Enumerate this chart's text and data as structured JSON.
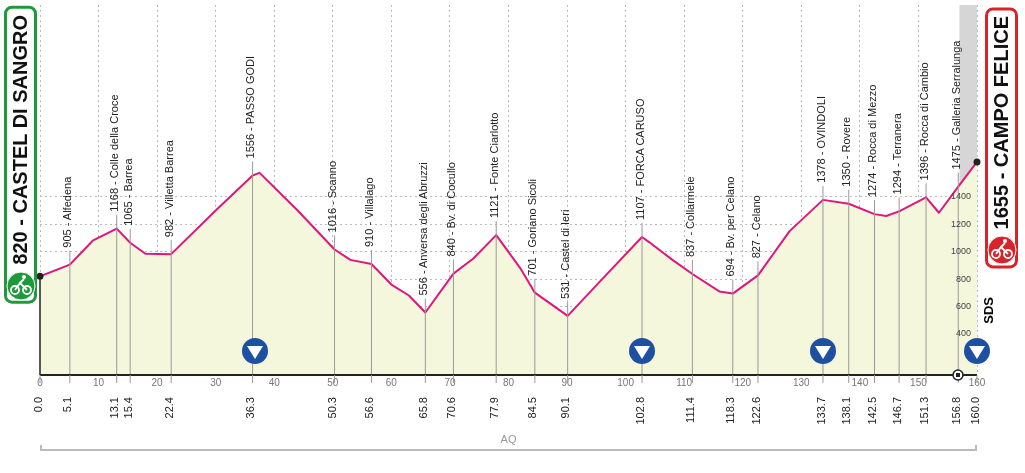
{
  "chart_data": {
    "type": "area",
    "x": [
      0,
      5.1,
      9,
      13.1,
      15.4,
      18,
      22.4,
      30,
      36.3,
      37.5,
      44,
      50.3,
      53,
      56.6,
      60,
      63,
      65.8,
      70.6,
      74,
      77.9,
      82,
      84.5,
      90.1,
      96,
      102.8,
      104,
      108,
      111.4,
      116,
      118.3,
      122.6,
      128,
      133.7,
      138.1,
      142.5,
      144.5,
      146.7,
      151.3,
      153.5,
      156.8,
      160.0
    ],
    "series": [
      {
        "color": "#e0157f",
        "values": [
          820,
          905,
          1080,
          1168,
          1065,
          985,
          982,
          1300,
          1556,
          1575,
          1300,
          1016,
          940,
          910,
          760,
          680,
          556,
          840,
          950,
          1121,
          880,
          701,
          531,
          800,
          1107,
          1070,
          940,
          837,
          710,
          694,
          827,
          1150,
          1378,
          1350,
          1274,
          1260,
          1294,
          1396,
          1284,
          1475,
          1655
        ],
        "value_labels": [
          null,
          "905 - Alfedena",
          null,
          "1168 - Colle della Croce",
          "1065 - Barrea",
          null,
          "982 - Villetta Barrea",
          null,
          "1556 - PASSO GODI",
          null,
          null,
          "1016 - Scanno",
          null,
          "910 - Villalago",
          null,
          null,
          "556 - Anversa degli Abruzzi",
          "840 - Bv. di Cocullo",
          null,
          "1121 - Fonte Ciarlotto",
          null,
          "701 - Goriano Sicoli",
          "531 - Castel di Ieri",
          null,
          "1107 - FORCA CARUSO",
          null,
          null,
          "837 - Collarmele",
          null,
          "694 - Bv. per Celano",
          "827 - Celano",
          null,
          "1378 - OVINDOLI",
          "1350 - Rovere",
          "1274 - Rocca di Mezzo",
          null,
          "1294 - Terranera",
          "1396 - Rocca di Cambio",
          null,
          "1475 - Galleria Serralunga",
          null
        ]
      }
    ],
    "xlim": [
      0,
      160
    ],
    "xticks": [
      0,
      10,
      20,
      30,
      40,
      50,
      60,
      70,
      80,
      90,
      100,
      110,
      120,
      130,
      140,
      150,
      160
    ],
    "x2lim": [
      0,
      160
    ],
    "x2ticks": [
      {
        "value": 0,
        "label": "0.0"
      },
      5.1,
      13.1,
      15.4,
      22.4,
      36.3,
      50.3,
      56.6,
      65.8,
      70.6,
      77.9,
      84.5,
      90.1,
      102.8,
      111.4,
      118.3,
      122.6,
      133.7,
      138.1,
      142.5,
      146.7,
      151.3,
      156.8,
      {
        "value": 160,
        "label": "160.0"
      }
    ],
    "ylim": [
      100,
      2800
    ],
    "yticks": [
      400,
      600,
      800,
      1000,
      1200,
      1400
    ],
    "grid": true,
    "bands": [
      {
        "axis": "x",
        "from": 157,
        "to": 160,
        "color": "#d6d6d6"
      }
    ],
    "annotations": [
      {
        "text": "820 - CASTEL DI SANGRO",
        "x": 0,
        "y": 820
      },
      {
        "text": "1655 - CAMPO FELICE",
        "x": 160,
        "y": 1655
      },
      "AQ",
      "SDS"
    ]
  }
}
